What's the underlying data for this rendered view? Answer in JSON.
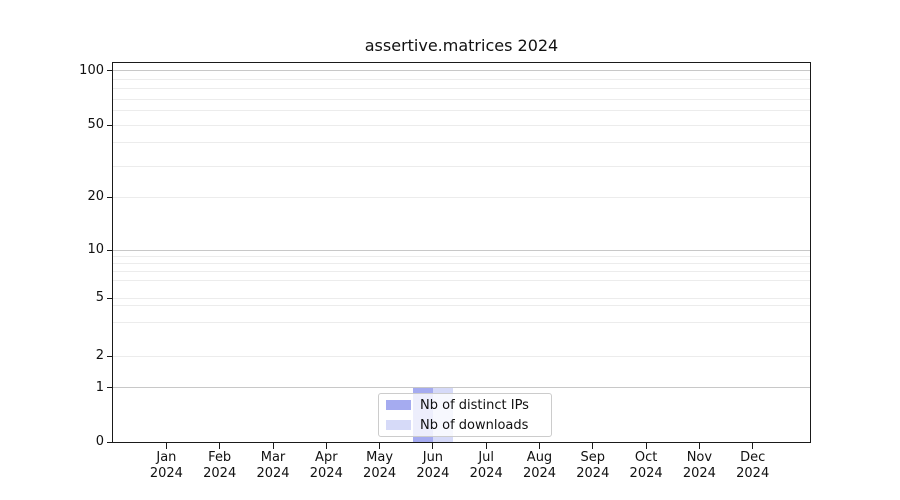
{
  "title": "assertive.matrices 2024",
  "chart_data": {
    "type": "bar",
    "title": "assertive.matrices 2024",
    "categories": [
      "Jan 2024",
      "Feb 2024",
      "Mar 2024",
      "Apr 2024",
      "May 2024",
      "Jun 2024",
      "Jul 2024",
      "Aug 2024",
      "Sep 2024",
      "Oct 2024",
      "Nov 2024",
      "Dec 2024"
    ],
    "series": [
      {
        "name": "Nb of distinct IPs",
        "color": "#a5abf0",
        "values": [
          0,
          0,
          0,
          0,
          0,
          1,
          0,
          0,
          0,
          0,
          0,
          0
        ]
      },
      {
        "name": "Nb of downloads",
        "color": "#d6daf8",
        "values": [
          0,
          0,
          0,
          0,
          0,
          1,
          0,
          0,
          0,
          0,
          0,
          0
        ]
      }
    ],
    "xlabel": "",
    "ylabel": "",
    "yscale": "symlog",
    "yticks": [
      0,
      1,
      2,
      5,
      10,
      20,
      50,
      100
    ],
    "ylim": [
      0,
      100
    ],
    "grid": "horizontal, major and minor",
    "legend_position": "lower center"
  }
}
